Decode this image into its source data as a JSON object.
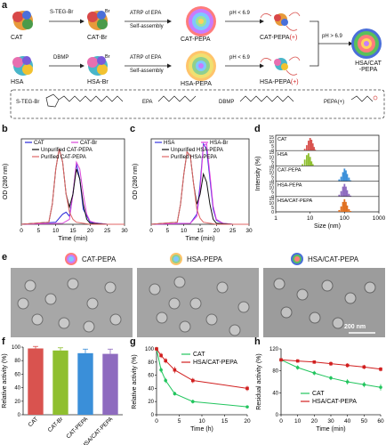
{
  "figure": {
    "panel_labels": [
      "a",
      "b",
      "c",
      "d",
      "e",
      "f",
      "g",
      "h"
    ]
  },
  "panel_a": {
    "row1": {
      "protein": "CAT",
      "step1": "S-TEG-Br",
      "product1": "CAT-Br",
      "step2_line1": "ATRP of EPA",
      "step2_line2": "Self-assembly",
      "product2": "CAT-PEPA",
      "ph_low": "pH < 6.9",
      "product3": "CAT-PEPA",
      "plus": "(+)"
    },
    "row2": {
      "protein": "HSA",
      "step1": "DBMP",
      "product1": "HSA-Br",
      "step2_line1": "ATRP of EPA",
      "step2_line2": "Self-assembly",
      "product2": "HSA-PEPA",
      "ph_low": "pH < 6.9",
      "product3": "HSA-PEPA",
      "plus": "(+)"
    },
    "ph_high": "pH > 6.9",
    "final_line1": "HSA/CAT",
    "final_line2": "-PEPA",
    "legend": [
      "S-TEG-Br",
      "EPA",
      "DBMP",
      "PEPA(+)"
    ]
  },
  "panel_e": {
    "images": [
      "CAT-PEPA",
      "HSA-PEPA",
      "HSA/CAT-PEPA"
    ],
    "scale_bar": "200 nm"
  },
  "colors": {
    "cat": "#2626d9",
    "cat_br": "#d946d9",
    "unpurified": "#111111",
    "purified": "#e06666",
    "hsa": "#3535e0",
    "hsa_br": "#e040e0",
    "bar_cat": "#d9534f",
    "bar_catbr": "#8fbf2f",
    "bar_catpepa": "#3a8fd9",
    "bar_hsacat": "#8e6bbf",
    "g_cat": "#22c55e",
    "g_hsacat": "#d11f1f"
  },
  "chart_data": [
    {
      "id": "b",
      "type": "line",
      "xlabel": "Time (min)",
      "ylabel": "OD (280 nm)",
      "xlim": [
        0,
        30
      ],
      "xticks": [
        0,
        5,
        10,
        15,
        20,
        25,
        30
      ],
      "series": [
        {
          "name": "CAT",
          "x": [
            0,
            10,
            12,
            13,
            14,
            15,
            16,
            17,
            18,
            20,
            25,
            30
          ],
          "y": [
            0,
            0.02,
            0.1,
            0.12,
            0.08,
            0.3,
            0.6,
            0.45,
            0.15,
            0.02,
            0,
            0
          ]
        },
        {
          "name": "CAT-Br",
          "x": [
            0,
            12,
            14,
            15,
            16,
            17,
            18,
            19,
            20,
            22,
            25,
            30
          ],
          "y": [
            0,
            0.01,
            0.05,
            0.3,
            0.62,
            0.55,
            0.3,
            0.1,
            0.03,
            0.01,
            0,
            0
          ]
        },
        {
          "name": "Unpurified CAT-PEPA",
          "x": [
            0,
            8,
            9,
            10,
            11,
            12,
            13,
            14,
            15,
            16,
            17,
            18,
            19,
            20,
            25,
            30
          ],
          "y": [
            0,
            0.02,
            0.2,
            0.55,
            0.75,
            0.62,
            0.3,
            0.17,
            0.3,
            0.55,
            0.45,
            0.2,
            0.05,
            0.01,
            0,
            0
          ]
        },
        {
          "name": "Purified CAT-PEPA",
          "x": [
            0,
            8,
            9,
            10,
            11,
            12,
            13,
            14,
            15,
            16,
            18,
            20,
            25,
            30
          ],
          "y": [
            0,
            0.02,
            0.2,
            0.55,
            0.75,
            0.62,
            0.3,
            0.12,
            0.05,
            0.02,
            0.01,
            0,
            0,
            0
          ]
        }
      ]
    },
    {
      "id": "c",
      "type": "line",
      "xlabel": "Time (min)",
      "ylabel": "OD (280 nm)",
      "xlim": [
        0,
        30
      ],
      "xticks": [
        0,
        5,
        10,
        15,
        20,
        25,
        30
      ],
      "series": [
        {
          "name": "HSA",
          "x": [
            0,
            12,
            14,
            15,
            16,
            17,
            18,
            19,
            20,
            22,
            25,
            30
          ],
          "y": [
            0,
            0.01,
            0.1,
            0.4,
            0.8,
            0.75,
            0.45,
            0.15,
            0.04,
            0.01,
            0,
            0
          ]
        },
        {
          "name": "HSA-Br",
          "x": [
            0,
            12,
            14,
            15,
            16,
            17,
            18,
            19,
            20,
            22,
            25,
            30
          ],
          "y": [
            0,
            0.01,
            0.08,
            0.35,
            0.78,
            0.8,
            0.5,
            0.18,
            0.05,
            0.01,
            0,
            0
          ]
        },
        {
          "name": "Unpurified HSA-PEPA",
          "x": [
            0,
            8,
            9,
            10,
            11,
            12,
            13,
            14,
            15,
            16,
            17,
            18,
            19,
            20,
            25,
            30
          ],
          "y": [
            0,
            0.02,
            0.2,
            0.5,
            0.72,
            0.68,
            0.4,
            0.2,
            0.3,
            0.5,
            0.42,
            0.2,
            0.05,
            0.01,
            0,
            0
          ]
        },
        {
          "name": "Purified HSA-PEPA",
          "x": [
            0,
            8,
            9,
            10,
            11,
            12,
            13,
            14,
            15,
            16,
            18,
            20,
            25,
            30
          ],
          "y": [
            0,
            0.02,
            0.2,
            0.5,
            0.72,
            0.68,
            0.4,
            0.15,
            0.06,
            0.02,
            0.01,
            0,
            0,
            0
          ]
        }
      ]
    },
    {
      "id": "d",
      "type": "bar",
      "xlabel": "Size (nm)",
      "ylabel": "Intensity (%)",
      "xscale": "log",
      "xlim": [
        1,
        1000
      ],
      "xticks": [
        1,
        10,
        100,
        1000
      ],
      "yticks": [
        0,
        5,
        10,
        15
      ],
      "series": [
        {
          "name": "CAT",
          "color": "#d9534f",
          "x": [
            7,
            8,
            9,
            10,
            11,
            12,
            13,
            14
          ],
          "y": [
            2,
            6,
            11,
            14,
            12,
            8,
            4,
            1
          ]
        },
        {
          "name": "HSA",
          "color": "#8fbf2f",
          "x": [
            6,
            7,
            8,
            9,
            10,
            11,
            12
          ],
          "y": [
            2,
            7,
            12,
            14,
            10,
            5,
            2
          ]
        },
        {
          "name": "CAT-PEPA",
          "color": "#3a8fd9",
          "x": [
            70,
            80,
            90,
            100,
            110,
            120,
            135,
            150
          ],
          "y": [
            2,
            5,
            10,
            14,
            12,
            8,
            4,
            1
          ]
        },
        {
          "name": "HSA-PEPA",
          "color": "#8e6bbf",
          "x": [
            70,
            80,
            90,
            100,
            110,
            120,
            135,
            150
          ],
          "y": [
            2,
            6,
            11,
            14,
            11,
            7,
            3,
            1
          ]
        },
        {
          "name": "HSA/CAT-PEPA",
          "color": "#e07020",
          "x": [
            70,
            80,
            90,
            100,
            110,
            120,
            135,
            150
          ],
          "y": [
            2,
            6,
            11,
            14,
            11,
            7,
            3,
            1
          ]
        }
      ]
    },
    {
      "id": "f",
      "type": "bar",
      "ylabel": "Relative activity (%)",
      "ylim": [
        0,
        100
      ],
      "yticks": [
        0,
        20,
        40,
        60,
        80,
        100
      ],
      "categories": [
        "CAT",
        "CAT-Br",
        "CAT-PEPA",
        "HSA/CAT-PEPA"
      ],
      "values": [
        98,
        95,
        91,
        90
      ],
      "errors": [
        3,
        4,
        6,
        7
      ]
    },
    {
      "id": "g",
      "type": "line",
      "xlabel": "Time (h)",
      "ylabel": "Relative activity (%)",
      "xlim": [
        0,
        20
      ],
      "ylim": [
        0,
        100
      ],
      "xticks": [
        0,
        5,
        10,
        15,
        20
      ],
      "yticks": [
        0,
        20,
        40,
        60,
        80,
        100
      ],
      "series": [
        {
          "name": "CAT",
          "x": [
            0,
            1,
            2,
            4,
            8,
            20
          ],
          "y": [
            100,
            68,
            52,
            32,
            20,
            12
          ],
          "err": [
            3,
            4,
            4,
            3,
            3,
            2
          ]
        },
        {
          "name": "HSA/CAT-PEPA",
          "x": [
            0,
            1,
            2,
            4,
            8,
            20
          ],
          "y": [
            100,
            90,
            82,
            68,
            52,
            40
          ],
          "err": [
            3,
            4,
            4,
            5,
            4,
            4
          ]
        }
      ]
    },
    {
      "id": "h",
      "type": "line",
      "xlabel": "Time (min)",
      "ylabel": "Residual activity (%)",
      "xlim": [
        0,
        60
      ],
      "ylim": [
        0,
        120
      ],
      "xticks": [
        0,
        10,
        20,
        30,
        40,
        50,
        60
      ],
      "yticks": [
        0,
        40,
        80,
        120
      ],
      "series": [
        {
          "name": "CAT",
          "x": [
            0,
            10,
            20,
            30,
            40,
            50,
            60
          ],
          "y": [
            100,
            86,
            76,
            67,
            60,
            55,
            50
          ],
          "err": [
            3,
            4,
            4,
            4,
            5,
            5,
            6
          ]
        },
        {
          "name": "HSA/CAT-PEPA",
          "x": [
            0,
            10,
            20,
            30,
            40,
            50,
            60
          ],
          "y": [
            100,
            98,
            96,
            93,
            90,
            87,
            83
          ],
          "err": [
            3,
            3,
            3,
            4,
            4,
            4,
            4
          ]
        }
      ]
    }
  ]
}
